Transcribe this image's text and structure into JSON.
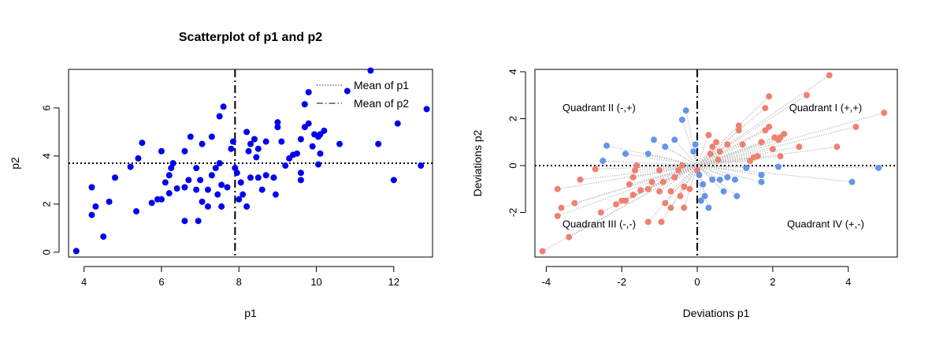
{
  "chart_data": [
    {
      "type": "scatter",
      "title": "Scatterplot of p1 and p2",
      "xlabel": "p1",
      "ylabel": "p2",
      "xlim": [
        3.6,
        13.0
      ],
      "ylim": [
        -0.2,
        7.6
      ],
      "xticks": [
        4,
        6,
        8,
        10,
        12
      ],
      "yticks": [
        0,
        2,
        4,
        6
      ],
      "mean_p1": 7.9,
      "mean_p2": 3.7,
      "point_color": "#0000ee",
      "legend": {
        "position": "top-right",
        "entries": [
          {
            "label": "Mean of p1",
            "style": "dotted"
          },
          {
            "label": "Mean of p2",
            "style": "dashdot"
          }
        ]
      },
      "points": [
        [
          3.8,
          0.05
        ],
        [
          4.5,
          0.65
        ],
        [
          4.2,
          1.55
        ],
        [
          4.3,
          1.9
        ],
        [
          4.2,
          2.7
        ],
        [
          4.65,
          2.1
        ],
        [
          4.8,
          3.1
        ],
        [
          5.2,
          3.55
        ],
        [
          5.35,
          1.7
        ],
        [
          5.4,
          3.9
        ],
        [
          5.5,
          4.55
        ],
        [
          5.75,
          2.05
        ],
        [
          5.9,
          2.2
        ],
        [
          6.0,
          4.2
        ],
        [
          6.0,
          2.2
        ],
        [
          6.1,
          2.9
        ],
        [
          6.2,
          3.2
        ],
        [
          6.25,
          3.5
        ],
        [
          6.3,
          3.7
        ],
        [
          6.4,
          2.65
        ],
        [
          6.2,
          2.45
        ],
        [
          6.6,
          1.3
        ],
        [
          6.6,
          2.7
        ],
        [
          6.6,
          4.2
        ],
        [
          6.7,
          3.0
        ],
        [
          6.75,
          4.8
        ],
        [
          6.9,
          2.6
        ],
        [
          6.9,
          3.5
        ],
        [
          6.95,
          1.3
        ],
        [
          7.0,
          3.0
        ],
        [
          7.05,
          4.5
        ],
        [
          7.05,
          2.1
        ],
        [
          7.2,
          1.9
        ],
        [
          7.2,
          2.6
        ],
        [
          7.3,
          3.2
        ],
        [
          7.4,
          3.5
        ],
        [
          7.5,
          3.7
        ],
        [
          7.45,
          2.4
        ],
        [
          7.55,
          2.8
        ],
        [
          7.5,
          5.65
        ],
        [
          7.6,
          6.05
        ],
        [
          7.3,
          4.8
        ],
        [
          7.55,
          1.9
        ],
        [
          7.7,
          2.7
        ],
        [
          7.8,
          4.3
        ],
        [
          7.85,
          4.6
        ],
        [
          7.9,
          3.5
        ],
        [
          7.95,
          3.3
        ],
        [
          8.0,
          2.2
        ],
        [
          8.05,
          2.9
        ],
        [
          8.1,
          2.4
        ],
        [
          8.2,
          1.9
        ],
        [
          8.25,
          4.2
        ],
        [
          8.2,
          5.0
        ],
        [
          8.3,
          4.5
        ],
        [
          8.3,
          3.1
        ],
        [
          8.4,
          4.7
        ],
        [
          8.45,
          3.95
        ],
        [
          8.5,
          4.3
        ],
        [
          8.5,
          3.1
        ],
        [
          8.6,
          2.6
        ],
        [
          8.7,
          3.2
        ],
        [
          8.7,
          4.6
        ],
        [
          8.9,
          3.1
        ],
        [
          8.95,
          2.4
        ],
        [
          9.0,
          5.4
        ],
        [
          9.0,
          5.2
        ],
        [
          9.1,
          4.6
        ],
        [
          9.2,
          3.6
        ],
        [
          9.3,
          3.9
        ],
        [
          9.4,
          4.05
        ],
        [
          9.5,
          4.1
        ],
        [
          9.6,
          3.0
        ],
        [
          9.6,
          3.3
        ],
        [
          9.6,
          4.7
        ],
        [
          9.7,
          5.2
        ],
        [
          9.7,
          6.15
        ],
        [
          9.8,
          5.35
        ],
        [
          9.8,
          6.65
        ],
        [
          9.9,
          4.4
        ],
        [
          9.95,
          4.9
        ],
        [
          10.05,
          4.8
        ],
        [
          10.05,
          3.65
        ],
        [
          10.1,
          4.1
        ],
        [
          10.1,
          4.9
        ],
        [
          10.2,
          5.05
        ],
        [
          10.6,
          4.5
        ],
        [
          10.8,
          6.7
        ],
        [
          11.4,
          7.55
        ],
        [
          11.6,
          4.5
        ],
        [
          12.0,
          3.0
        ],
        [
          12.1,
          5.35
        ],
        [
          12.7,
          3.6
        ],
        [
          12.85,
          5.95
        ]
      ]
    },
    {
      "type": "scatter",
      "title": "",
      "xlabel": "Deviations p1",
      "ylabel": "Deviations p2",
      "xlim": [
        -4.3,
        5.3
      ],
      "ylim": [
        -3.9,
        4.1
      ],
      "xticks": [
        -4,
        -2,
        0,
        2,
        4
      ],
      "yticks": [
        -2,
        0,
        2,
        4
      ],
      "positive_color": "#f08070",
      "negative_color": "#6495ed",
      "connector_color": "#b4b4b4",
      "annotations": [
        {
          "text": "Quadrant I (+,+)",
          "x": 3.4,
          "y": 2.45
        },
        {
          "text": "Quadrant II (-,+)",
          "x": -2.6,
          "y": 2.45
        },
        {
          "text": "Quadrant III (-,-)",
          "x": -2.6,
          "y": -2.5
        },
        {
          "text": "Quadrant IV (+,-)",
          "x": 3.4,
          "y": -2.5
        }
      ],
      "points": [
        [
          -4.1,
          -3.65
        ],
        [
          -3.4,
          -3.05
        ],
        [
          -3.7,
          -2.15
        ],
        [
          -3.6,
          -1.8
        ],
        [
          -3.7,
          -1.0
        ],
        [
          -3.25,
          -1.6
        ],
        [
          -3.1,
          -0.6
        ],
        [
          -2.7,
          -0.15
        ],
        [
          -2.55,
          -2.0
        ],
        [
          -2.5,
          0.2
        ],
        [
          -2.4,
          0.85
        ],
        [
          -2.15,
          -1.65
        ],
        [
          -2.0,
          -1.5
        ],
        [
          -1.9,
          0.5
        ],
        [
          -1.9,
          -1.5
        ],
        [
          -1.8,
          -0.8
        ],
        [
          -1.7,
          -0.5
        ],
        [
          -1.65,
          -0.2
        ],
        [
          -1.6,
          0.0
        ],
        [
          -1.5,
          -1.05
        ],
        [
          -1.7,
          -1.25
        ],
        [
          -1.3,
          -2.4
        ],
        [
          -1.3,
          -1.0
        ],
        [
          -1.3,
          0.5
        ],
        [
          -1.2,
          -0.7
        ],
        [
          -1.15,
          1.1
        ],
        [
          -1.0,
          -1.1
        ],
        [
          -1.0,
          -0.2
        ],
        [
          -0.95,
          -2.4
        ],
        [
          -0.9,
          -0.7
        ],
        [
          -0.85,
          0.8
        ],
        [
          -0.85,
          -1.6
        ],
        [
          -0.7,
          -1.8
        ],
        [
          -0.7,
          -1.1
        ],
        [
          -0.6,
          -0.5
        ],
        [
          -0.5,
          -0.2
        ],
        [
          -0.4,
          0.0
        ],
        [
          -0.45,
          -1.3
        ],
        [
          -0.35,
          -0.9
        ],
        [
          -0.4,
          1.95
        ],
        [
          -0.3,
          2.35
        ],
        [
          -0.6,
          1.1
        ],
        [
          -0.35,
          -1.8
        ],
        [
          -0.2,
          -1.0
        ],
        [
          -0.1,
          0.6
        ],
        [
          -0.05,
          0.9
        ],
        [
          0.0,
          -0.2
        ],
        [
          0.05,
          -0.4
        ],
        [
          0.1,
          -1.5
        ],
        [
          0.15,
          -0.8
        ],
        [
          0.2,
          -1.3
        ],
        [
          0.3,
          -1.8
        ],
        [
          0.35,
          0.5
        ],
        [
          0.3,
          1.3
        ],
        [
          0.4,
          0.8
        ],
        [
          0.4,
          -0.6
        ],
        [
          0.5,
          1.0
        ],
        [
          0.55,
          0.25
        ],
        [
          0.6,
          0.6
        ],
        [
          0.6,
          -0.6
        ],
        [
          0.7,
          -1.1
        ],
        [
          0.8,
          -0.5
        ],
        [
          0.8,
          0.9
        ],
        [
          1.0,
          -0.6
        ],
        [
          1.05,
          -1.3
        ],
        [
          1.1,
          1.7
        ],
        [
          1.1,
          1.5
        ],
        [
          1.2,
          0.9
        ],
        [
          1.3,
          -0.1
        ],
        [
          1.4,
          0.2
        ],
        [
          1.5,
          0.35
        ],
        [
          1.6,
          0.4
        ],
        [
          1.7,
          -0.7
        ],
        [
          1.7,
          -0.4
        ],
        [
          1.7,
          1.0
        ],
        [
          1.8,
          1.5
        ],
        [
          1.8,
          2.45
        ],
        [
          1.9,
          1.65
        ],
        [
          1.9,
          2.95
        ],
        [
          2.0,
          0.7
        ],
        [
          2.05,
          1.2
        ],
        [
          2.15,
          1.1
        ],
        [
          2.15,
          -0.05
        ],
        [
          2.2,
          0.4
        ],
        [
          2.2,
          1.2
        ],
        [
          2.3,
          1.35
        ],
        [
          2.7,
          0.8
        ],
        [
          2.9,
          3.0
        ],
        [
          3.5,
          3.85
        ],
        [
          3.7,
          0.8
        ],
        [
          4.1,
          -0.7
        ],
        [
          4.2,
          1.65
        ],
        [
          4.8,
          -0.1
        ],
        [
          4.95,
          2.25
        ]
      ]
    }
  ]
}
